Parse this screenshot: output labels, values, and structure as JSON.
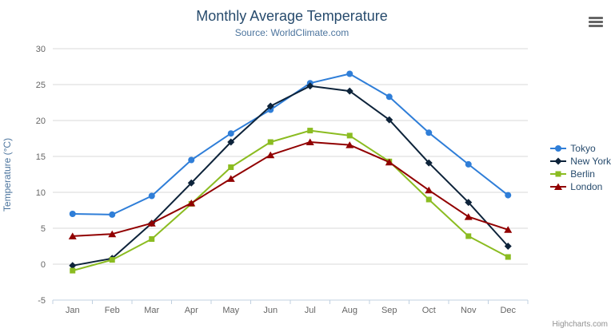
{
  "chart_data": {
    "type": "line",
    "title": "Monthly Average Temperature",
    "subtitle": "Source: WorldClimate.com",
    "xlabel": "",
    "ylabel": "Temperature (°C)",
    "ylim": [
      -5,
      30
    ],
    "ytick_step": 5,
    "grid": true,
    "legend_position": "right",
    "categories": [
      "Jan",
      "Feb",
      "Mar",
      "Apr",
      "May",
      "Jun",
      "Jul",
      "Aug",
      "Sep",
      "Oct",
      "Nov",
      "Dec"
    ],
    "series": [
      {
        "name": "Tokyo",
        "color": "#2f7ed8",
        "marker": "circle",
        "values": [
          7.0,
          6.9,
          9.5,
          14.5,
          18.2,
          21.5,
          25.2,
          26.5,
          23.3,
          18.3,
          13.9,
          9.6
        ]
      },
      {
        "name": "New York",
        "color": "#0d233a",
        "marker": "diamond",
        "values": [
          -0.2,
          0.8,
          5.7,
          11.3,
          17.0,
          22.0,
          24.8,
          24.1,
          20.1,
          14.1,
          8.6,
          2.5
        ]
      },
      {
        "name": "Berlin",
        "color": "#8bbc21",
        "marker": "square",
        "values": [
          -0.9,
          0.6,
          3.5,
          8.4,
          13.5,
          17.0,
          18.6,
          17.9,
          14.3,
          9.0,
          3.9,
          1.0
        ]
      },
      {
        "name": "London",
        "color": "#910000",
        "marker": "triangle",
        "values": [
          3.9,
          4.2,
          5.7,
          8.5,
          11.9,
          15.2,
          17.0,
          16.6,
          14.2,
          10.3,
          6.6,
          4.8
        ]
      }
    ]
  },
  "export_menu": {
    "icon": "hamburger-icon"
  },
  "credits": {
    "label": "Highcharts.com"
  },
  "style": {
    "grid_color": "#d8d8d8",
    "axis_line_color": "#c0d0e0",
    "axis_label_color": "#666666"
  }
}
